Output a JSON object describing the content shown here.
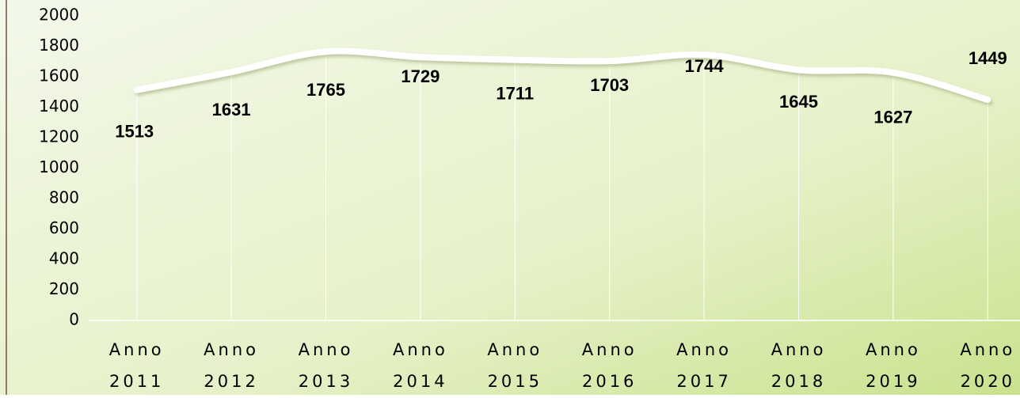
{
  "chart_data": {
    "type": "line",
    "categories": [
      "Anno 2011",
      "Anno 2012",
      "Anno 2013",
      "Anno 2014",
      "Anno 2015",
      "Anno 2016",
      "Anno 2017",
      "Anno 2018",
      "Anno 2019",
      "Anno 2020"
    ],
    "values": [
      1513,
      1631,
      1765,
      1729,
      1711,
      1703,
      1744,
      1645,
      1627,
      1449
    ],
    "color": "#ffffff",
    "ylim": [
      0,
      2000
    ],
    "yticks": [
      0,
      200,
      400,
      600,
      800,
      1000,
      1200,
      1400,
      1600,
      1800,
      2000
    ],
    "grid": true
  }
}
